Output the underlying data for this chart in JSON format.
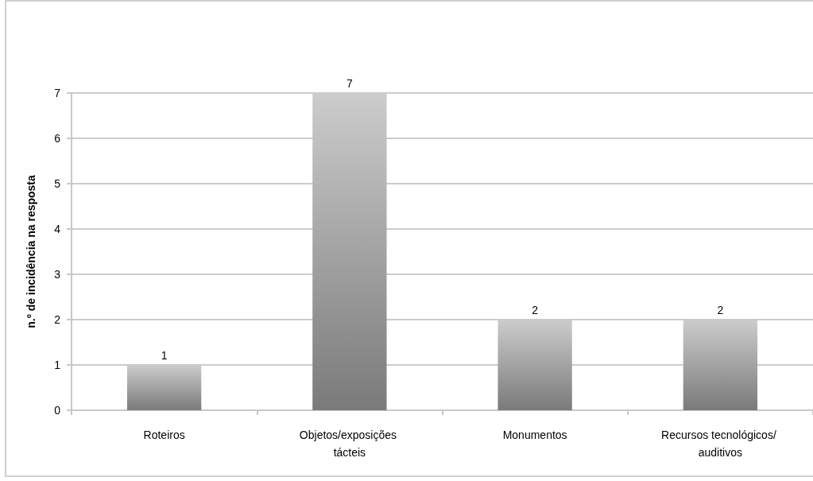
{
  "chart_data": {
    "type": "bar",
    "ylabel": "n.º de incidência na resposta",
    "categories": [
      "Roteiros",
      "Objetos/exposições tácteis",
      "Monumentos",
      "Recursos tecnológicos/ auditivos"
    ],
    "values": [
      1,
      7,
      2,
      2
    ],
    "color": "#7a7a7a",
    "ylim": [
      0,
      7
    ],
    "yticks": [
      0,
      1,
      2,
      3,
      4,
      5,
      6,
      7
    ],
    "grid": "y",
    "data_labels": true
  }
}
